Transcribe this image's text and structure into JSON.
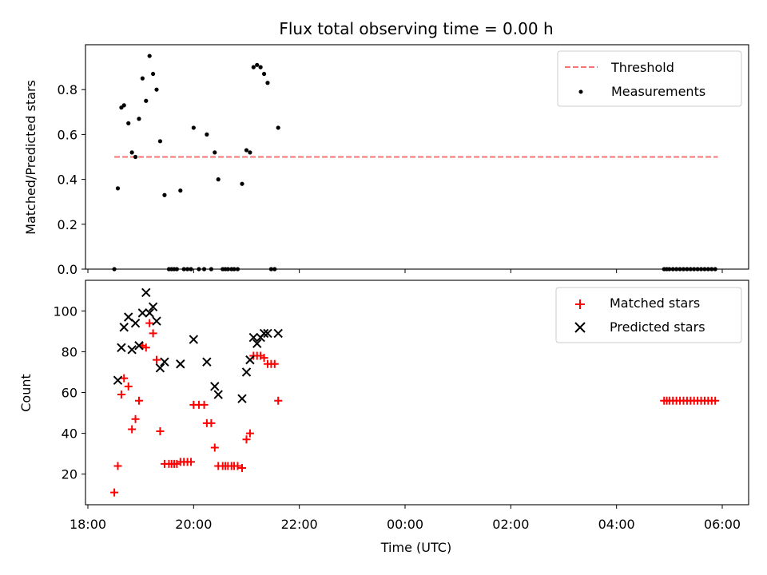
{
  "chart_data": [
    {
      "type": "scatter",
      "title": "Flux total observing time = 0.00 h",
      "xlabel": "",
      "ylabel": "Matched/Predicted stars",
      "xlim": [
        "18:00",
        "06:00"
      ],
      "ylim": [
        0,
        1.0
      ],
      "yticks": [
        0.0,
        0.2,
        0.4,
        0.6,
        0.8
      ],
      "legend_position": "top-right",
      "threshold": {
        "name": "Threshold",
        "color": "#ff7070",
        "style": "dashed",
        "value": 0.5,
        "x_range": [
          "18:30",
          "05:55"
        ]
      },
      "series": [
        {
          "name": "Measurements",
          "color": "#000000",
          "marker": "dot",
          "points": [
            [
              "18:30",
              0.0
            ],
            [
              "18:34",
              0.36
            ],
            [
              "18:38",
              0.72
            ],
            [
              "18:41",
              0.73
            ],
            [
              "18:46",
              0.65
            ],
            [
              "18:50",
              0.52
            ],
            [
              "18:54",
              0.5
            ],
            [
              "18:58",
              0.67
            ],
            [
              "19:02",
              0.85
            ],
            [
              "19:06",
              0.75
            ],
            [
              "19:10",
              0.95
            ],
            [
              "19:14",
              0.87
            ],
            [
              "19:18",
              0.8
            ],
            [
              "19:22",
              0.57
            ],
            [
              "19:27",
              0.33
            ],
            [
              "19:32",
              0.0
            ],
            [
              "19:35",
              0.0
            ],
            [
              "19:38",
              0.0
            ],
            [
              "19:41",
              0.0
            ],
            [
              "19:45",
              0.35
            ],
            [
              "19:49",
              0.0
            ],
            [
              "19:53",
              0.0
            ],
            [
              "19:57",
              0.0
            ],
            [
              "20:00",
              0.63
            ],
            [
              "20:06",
              0.0
            ],
            [
              "20:12",
              0.0
            ],
            [
              "20:15",
              0.6
            ],
            [
              "20:20",
              0.0
            ],
            [
              "20:24",
              0.52
            ],
            [
              "20:28",
              0.4
            ],
            [
              "20:33",
              0.0
            ],
            [
              "20:36",
              0.0
            ],
            [
              "20:39",
              0.0
            ],
            [
              "20:43",
              0.0
            ],
            [
              "20:46",
              0.0
            ],
            [
              "20:50",
              0.0
            ],
            [
              "20:55",
              0.38
            ],
            [
              "21:00",
              0.53
            ],
            [
              "21:04",
              0.52
            ],
            [
              "21:08",
              0.9
            ],
            [
              "21:12",
              0.91
            ],
            [
              "21:16",
              0.9
            ],
            [
              "21:20",
              0.87
            ],
            [
              "21:24",
              0.83
            ],
            [
              "21:28",
              0.0
            ],
            [
              "21:32",
              0.0
            ],
            [
              "21:36",
              0.63
            ],
            [
              "04:54",
              0.0
            ],
            [
              "04:57",
              0.0
            ],
            [
              "05:00",
              0.0
            ],
            [
              "05:04",
              0.0
            ],
            [
              "05:08",
              0.0
            ],
            [
              "05:12",
              0.0
            ],
            [
              "05:16",
              0.0
            ],
            [
              "05:20",
              0.0
            ],
            [
              "05:24",
              0.0
            ],
            [
              "05:28",
              0.0
            ],
            [
              "05:32",
              0.0
            ],
            [
              "05:36",
              0.0
            ],
            [
              "05:40",
              0.0
            ],
            [
              "05:44",
              0.0
            ],
            [
              "05:48",
              0.0
            ],
            [
              "05:52",
              0.0
            ]
          ]
        }
      ]
    },
    {
      "type": "scatter",
      "title": "",
      "xlabel": "Time (UTC)",
      "ylabel": "Count",
      "xlim": [
        "18:00",
        "06:00"
      ],
      "ylim": [
        5,
        115
      ],
      "yticks": [
        20,
        40,
        60,
        80,
        100
      ],
      "xticks": [
        "18:00",
        "20:00",
        "22:00",
        "00:00",
        "02:00",
        "04:00",
        "06:00"
      ],
      "legend_position": "top-right",
      "series": [
        {
          "name": "Matched stars",
          "color": "#ff0000",
          "marker": "plus",
          "points": [
            [
              "18:30",
              11
            ],
            [
              "18:34",
              24
            ],
            [
              "18:38",
              59
            ],
            [
              "18:41",
              67
            ],
            [
              "18:46",
              63
            ],
            [
              "18:50",
              42
            ],
            [
              "18:54",
              47
            ],
            [
              "18:58",
              56
            ],
            [
              "19:02",
              83
            ],
            [
              "19:06",
              82
            ],
            [
              "19:10",
              94
            ],
            [
              "19:14",
              89
            ],
            [
              "19:18",
              76
            ],
            [
              "19:22",
              41
            ],
            [
              "19:27",
              25
            ],
            [
              "19:32",
              25
            ],
            [
              "19:35",
              25
            ],
            [
              "19:38",
              25
            ],
            [
              "19:41",
              25
            ],
            [
              "19:45",
              26
            ],
            [
              "19:49",
              26
            ],
            [
              "19:53",
              26
            ],
            [
              "19:57",
              26
            ],
            [
              "20:00",
              54
            ],
            [
              "20:06",
              54
            ],
            [
              "20:12",
              54
            ],
            [
              "20:15",
              45
            ],
            [
              "20:20",
              45
            ],
            [
              "20:24",
              33
            ],
            [
              "20:28",
              24
            ],
            [
              "20:33",
              24
            ],
            [
              "20:36",
              24
            ],
            [
              "20:39",
              24
            ],
            [
              "20:43",
              24
            ],
            [
              "20:46",
              24
            ],
            [
              "20:50",
              24
            ],
            [
              "20:55",
              23
            ],
            [
              "21:00",
              37
            ],
            [
              "21:04",
              40
            ],
            [
              "21:08",
              78
            ],
            [
              "21:12",
              78
            ],
            [
              "21:16",
              78
            ],
            [
              "21:20",
              77
            ],
            [
              "21:24",
              74
            ],
            [
              "21:28",
              74
            ],
            [
              "21:32",
              74
            ],
            [
              "21:36",
              56
            ],
            [
              "04:54",
              56
            ],
            [
              "04:57",
              56
            ],
            [
              "05:00",
              56
            ],
            [
              "05:04",
              56
            ],
            [
              "05:08",
              56
            ],
            [
              "05:12",
              56
            ],
            [
              "05:16",
              56
            ],
            [
              "05:20",
              56
            ],
            [
              "05:24",
              56
            ],
            [
              "05:28",
              56
            ],
            [
              "05:32",
              56
            ],
            [
              "05:36",
              56
            ],
            [
              "05:40",
              56
            ],
            [
              "05:44",
              56
            ],
            [
              "05:48",
              56
            ],
            [
              "05:52",
              56
            ]
          ]
        },
        {
          "name": "Predicted stars",
          "color": "#000000",
          "marker": "x",
          "points": [
            [
              "18:34",
              66
            ],
            [
              "18:38",
              82
            ],
            [
              "18:41",
              92
            ],
            [
              "18:46",
              97
            ],
            [
              "18:50",
              81
            ],
            [
              "18:54",
              94
            ],
            [
              "18:58",
              83
            ],
            [
              "19:02",
              99
            ],
            [
              "19:06",
              109
            ],
            [
              "19:10",
              99
            ],
            [
              "19:14",
              102
            ],
            [
              "19:18",
              95
            ],
            [
              "19:22",
              72
            ],
            [
              "19:27",
              75
            ],
            [
              "19:45",
              74
            ],
            [
              "20:00",
              86
            ],
            [
              "20:15",
              75
            ],
            [
              "20:24",
              63
            ],
            [
              "20:28",
              59
            ],
            [
              "20:55",
              57
            ],
            [
              "21:00",
              70
            ],
            [
              "21:04",
              76
            ],
            [
              "21:08",
              87
            ],
            [
              "21:12",
              84
            ],
            [
              "21:16",
              87
            ],
            [
              "21:20",
              89
            ],
            [
              "21:24",
              89
            ],
            [
              "21:36",
              89
            ]
          ]
        }
      ]
    }
  ]
}
